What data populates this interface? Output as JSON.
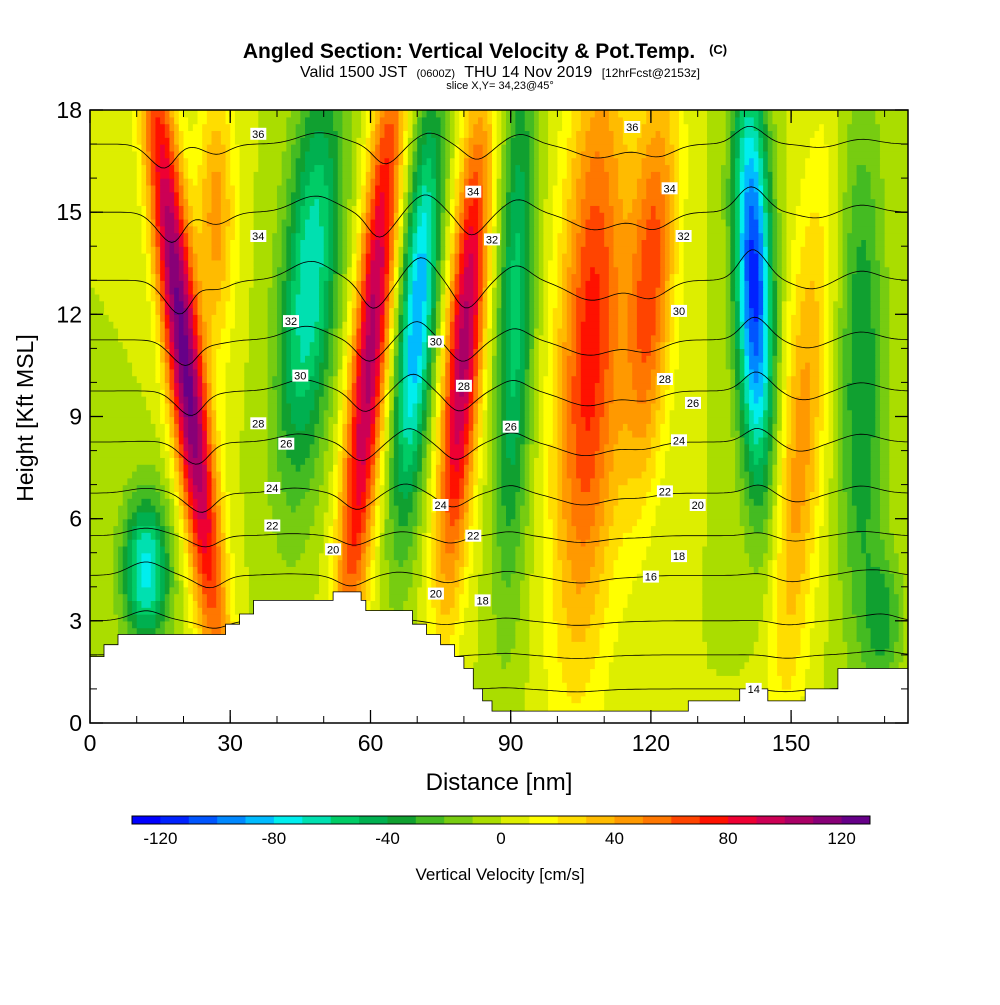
{
  "chart_data": {
    "type": "heatmap",
    "title": "Angled Section: Vertical Velocity & Pot.Temp.",
    "title_mark": "(C)",
    "subtitle_main": "Valid 1500 JST",
    "subtitle_utc": "(0600Z)",
    "subtitle_date": "THU 14 Nov 2019",
    "subtitle_fcst": "[12hrFcst@2153z]",
    "slice_label": "slice X,Y= 34,23@45°",
    "xlabel": "Distance [nm]",
    "ylabel": "Height [Kft MSL]",
    "xlim": [
      0,
      175
    ],
    "ylim": [
      0,
      18
    ],
    "x_ticks": [
      0,
      30,
      60,
      90,
      120,
      150
    ],
    "y_ticks": [
      0,
      3,
      6,
      9,
      12,
      15,
      18
    ],
    "x_minor_step": 10,
    "y_minor_step": 1,
    "colorbar": {
      "label": "Vertical Velocity [cm/s]",
      "ticks": [
        -120,
        -80,
        -40,
        0,
        40,
        80,
        120
      ],
      "range": [
        -130,
        130
      ],
      "step": 10,
      "colors": [
        "#0000ff",
        "#0022ff",
        "#0055ff",
        "#0088ff",
        "#00bbff",
        "#00eeee",
        "#00e0b0",
        "#00cc66",
        "#00b050",
        "#10a030",
        "#44bb22",
        "#77cc11",
        "#aadd00",
        "#ddee00",
        "#ffff00",
        "#ffdd00",
        "#ffbb00",
        "#ff9900",
        "#ff7700",
        "#ff4400",
        "#ff1100",
        "#ee0033",
        "#cc0055",
        "#aa0066",
        "#880077",
        "#660088"
      ]
    },
    "w_centers": [
      {
        "x": 12,
        "z": 4.5,
        "w": -75,
        "sx": 5,
        "sz": 2.2,
        "tilt": 0
      },
      {
        "x": 20,
        "z": 11,
        "w": 125,
        "sx": 4,
        "sz": 9,
        "tilt": -0.8
      },
      {
        "x": 27,
        "z": 15,
        "w": 45,
        "sx": 4,
        "sz": 4,
        "tilt": 0
      },
      {
        "x": 47,
        "z": 13,
        "w": -70,
        "sx": 6,
        "sz": 6,
        "tilt": 0.5
      },
      {
        "x": 60,
        "z": 11,
        "w": 105,
        "sx": 4,
        "sz": 9,
        "tilt": 0.6
      },
      {
        "x": 70,
        "z": 12,
        "w": -90,
        "sx": 4,
        "sz": 6,
        "tilt": 0.5
      },
      {
        "x": 80,
        "z": 11,
        "w": 105,
        "sx": 4,
        "sz": 7,
        "tilt": 0.5
      },
      {
        "x": 91,
        "z": 12,
        "w": -55,
        "sx": 4,
        "sz": 8,
        "tilt": 0.2
      },
      {
        "x": 107,
        "z": 11,
        "w": 75,
        "sx": 7,
        "sz": 9,
        "tilt": 0.3
      },
      {
        "x": 120,
        "z": 13,
        "w": 65,
        "sx": 5,
        "sz": 6,
        "tilt": 0.4
      },
      {
        "x": 142,
        "z": 13,
        "w": -115,
        "sx": 4,
        "sz": 6,
        "tilt": -0.2
      },
      {
        "x": 152,
        "z": 8,
        "w": 45,
        "sx": 5,
        "sz": 8,
        "tilt": 0.5
      },
      {
        "x": 165,
        "z": 10,
        "w": -40,
        "sx": 5,
        "sz": 8,
        "tilt": 0
      },
      {
        "x": 170,
        "z": 3,
        "w": -30,
        "sx": 4,
        "sz": 2,
        "tilt": 0
      }
    ],
    "theta_levels": [
      14,
      16,
      18,
      20,
      22,
      24,
      26,
      28,
      30,
      32,
      34,
      36
    ],
    "theta_profile": [
      {
        "z": 0,
        "t": 12
      },
      {
        "z": 3,
        "t": 18
      },
      {
        "z": 5,
        "t": 21
      },
      {
        "z": 6,
        "t": 23
      },
      {
        "z": 9,
        "t": 27
      },
      {
        "z": 12,
        "t": 31
      },
      {
        "z": 15,
        "t": 34
      },
      {
        "z": 18,
        "t": 37
      }
    ],
    "contour_labels": [
      {
        "x": 36,
        "z": 17.3,
        "value": "36"
      },
      {
        "x": 116,
        "z": 17.5,
        "value": "36"
      },
      {
        "x": 82,
        "z": 15.6,
        "value": "34"
      },
      {
        "x": 124,
        "z": 15.7,
        "value": "34"
      },
      {
        "x": 36,
        "z": 14.3,
        "value": "34"
      },
      {
        "x": 86,
        "z": 14.2,
        "value": "32"
      },
      {
        "x": 127,
        "z": 14.3,
        "value": "32"
      },
      {
        "x": 43,
        "z": 11.8,
        "value": "32"
      },
      {
        "x": 126,
        "z": 12.1,
        "value": "30"
      },
      {
        "x": 74,
        "z": 11.2,
        "value": "30"
      },
      {
        "x": 45,
        "z": 10.2,
        "value": "30"
      },
      {
        "x": 80,
        "z": 9.9,
        "value": "28"
      },
      {
        "x": 123,
        "z": 10.1,
        "value": "28"
      },
      {
        "x": 129,
        "z": 9.4,
        "value": "26"
      },
      {
        "x": 36,
        "z": 8.8,
        "value": "28"
      },
      {
        "x": 90,
        "z": 8.7,
        "value": "26"
      },
      {
        "x": 42,
        "z": 8.2,
        "value": "26"
      },
      {
        "x": 126,
        "z": 8.3,
        "value": "24"
      },
      {
        "x": 39,
        "z": 6.9,
        "value": "24"
      },
      {
        "x": 123,
        "z": 6.8,
        "value": "22"
      },
      {
        "x": 130,
        "z": 6.4,
        "value": "20"
      },
      {
        "x": 75,
        "z": 6.4,
        "value": "24"
      },
      {
        "x": 39,
        "z": 5.8,
        "value": "22"
      },
      {
        "x": 82,
        "z": 5.5,
        "value": "22"
      },
      {
        "x": 52,
        "z": 5.1,
        "value": "20"
      },
      {
        "x": 126,
        "z": 4.9,
        "value": "18"
      },
      {
        "x": 120,
        "z": 4.3,
        "value": "16"
      },
      {
        "x": 74,
        "z": 3.8,
        "value": "20"
      },
      {
        "x": 84,
        "z": 3.6,
        "value": "18"
      },
      {
        "x": 142,
        "z": 1.0,
        "value": "14"
      }
    ],
    "terrain": [
      [
        0,
        1.95
      ],
      [
        3,
        1.95
      ],
      [
        3,
        2.3
      ],
      [
        6,
        2.3
      ],
      [
        6,
        2.6
      ],
      [
        29,
        2.6
      ],
      [
        29,
        2.9
      ],
      [
        32,
        2.9
      ],
      [
        32,
        3.2
      ],
      [
        35,
        3.2
      ],
      [
        35,
        3.6
      ],
      [
        52,
        3.6
      ],
      [
        52,
        3.85
      ],
      [
        58,
        3.85
      ],
      [
        58,
        3.6
      ],
      [
        59,
        3.6
      ],
      [
        59,
        3.3
      ],
      [
        69,
        3.3
      ],
      [
        69,
        2.9
      ],
      [
        72,
        2.9
      ],
      [
        72,
        2.6
      ],
      [
        75,
        2.6
      ],
      [
        75,
        2.3
      ],
      [
        78,
        2.3
      ],
      [
        78,
        1.95
      ],
      [
        80,
        1.95
      ],
      [
        80,
        1.6
      ],
      [
        82,
        1.6
      ],
      [
        82,
        1.0
      ],
      [
        84,
        1.0
      ],
      [
        84,
        0.65
      ],
      [
        86,
        0.65
      ],
      [
        86,
        0.35
      ],
      [
        110,
        0.35
      ],
      [
        113,
        0.35
      ],
      [
        128,
        0.35
      ],
      [
        128,
        0.65
      ],
      [
        139,
        0.65
      ],
      [
        139,
        1.0
      ],
      [
        145,
        1.0
      ],
      [
        145,
        0.65
      ],
      [
        153,
        0.65
      ],
      [
        153,
        1.0
      ],
      [
        160,
        1.0
      ],
      [
        160,
        1.6
      ],
      [
        175,
        1.6
      ]
    ]
  }
}
